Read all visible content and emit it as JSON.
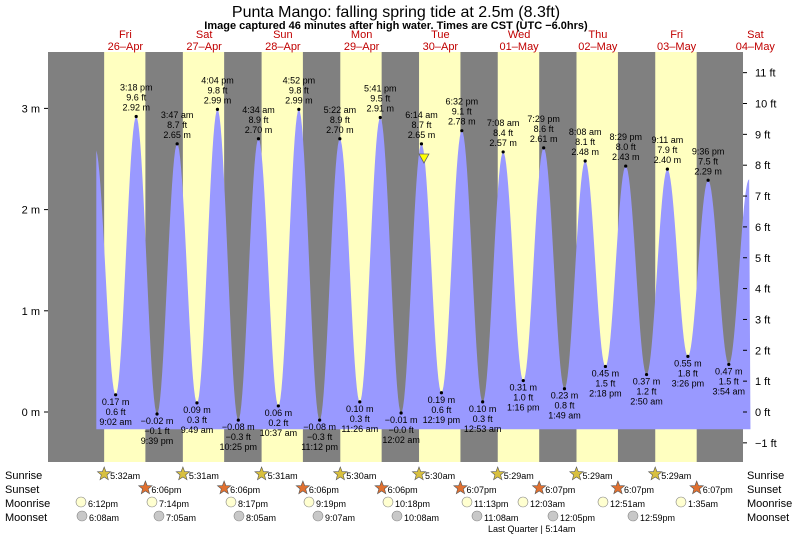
{
  "title": "Punta Mango: falling  spring tide at 2.5m (8.3ft)",
  "subtitle": "Image captured 46 minutes after high water. Times are CST (UTC −6.0hrs)",
  "colors": {
    "day": "#ffffc0",
    "night": "#808080",
    "tide": "#9999ff",
    "dayname": "#c00000"
  },
  "days": [
    {
      "name": "Fri",
      "date": "26–Apr"
    },
    {
      "name": "Sat",
      "date": "27–Apr"
    },
    {
      "name": "Sun",
      "date": "28–Apr"
    },
    {
      "name": "Mon",
      "date": "29–Apr"
    },
    {
      "name": "Tue",
      "date": "30–Apr"
    },
    {
      "name": "Wed",
      "date": "01–May"
    },
    {
      "name": "Thu",
      "date": "02–May"
    },
    {
      "name": "Fri",
      "date": "03–May"
    },
    {
      "name": "Sat",
      "date": "04–May"
    }
  ],
  "row_labels": {
    "sunrise": "Sunrise",
    "sunset": "Sunset",
    "moonrise": "Moonrise",
    "moonset": "Moonset"
  },
  "sunrise": [
    "5:32am",
    "5:31am",
    "5:31am",
    "5:30am",
    "5:30am",
    "5:29am",
    "5:29am",
    "5:29am"
  ],
  "sunset": [
    "6:06pm",
    "6:06pm",
    "6:06pm",
    "6:06pm",
    "6:07pm",
    "6:07pm",
    "6:07pm",
    "6:07pm"
  ],
  "moonrise": [
    "6:12pm",
    "7:14pm",
    "8:17pm",
    "9:19pm",
    "10:18pm",
    "11:13pm",
    "12:03am",
    "12:51am",
    "1:35am"
  ],
  "moonset": [
    "6:08am",
    "7:05am",
    "8:05am",
    "9:07am",
    "10:08am",
    "11:08am",
    "12:05pm",
    "12:59pm"
  ],
  "moon_phase": "Last Quarter | 5:14am",
  "chart_data": {
    "type": "area",
    "title": "Punta Mango: falling  spring tide at 2.5m (8.3ft)",
    "xlabel": "",
    "ylabel": "",
    "x_range": [
      "26-Apr 00:00",
      "04-May 24:00"
    ],
    "ylim_m": [
      -0.35,
      3.4
    ],
    "ylim_ft": [
      -1.1,
      11.1
    ],
    "left_ticks": [
      "0 m",
      "1 m",
      "2 m",
      "3 m"
    ],
    "right_ticks": [
      "−1 ft",
      "0 ft",
      "1 ft",
      "2 ft",
      "3 ft",
      "4 ft",
      "5 ft",
      "6 ft",
      "7 ft",
      "8 ft",
      "9 ft",
      "10 ft",
      "11 ft"
    ],
    "extremes": [
      {
        "day": 0,
        "time": "9:02 am",
        "m": "0.17 m",
        "ft": "0.6 ft",
        "type": "low",
        "h": 0.17
      },
      {
        "day": 0,
        "time": "3:18 pm",
        "m": "2.92 m",
        "ft": "9.6 ft",
        "type": "high",
        "h": 2.92
      },
      {
        "day": 0,
        "time": "9:39 pm",
        "m": "−0.02 m",
        "ft": "−0.1 ft",
        "type": "low",
        "h": -0.02
      },
      {
        "day": 1,
        "time": "3:47 am",
        "m": "2.65 m",
        "ft": "8.7 ft",
        "type": "high",
        "h": 2.65
      },
      {
        "day": 1,
        "time": "9:49 am",
        "m": "0.09 m",
        "ft": "0.3 ft",
        "type": "low",
        "h": 0.09
      },
      {
        "day": 1,
        "time": "4:04 pm",
        "m": "2.99 m",
        "ft": "9.8 ft",
        "type": "high",
        "h": 2.99
      },
      {
        "day": 1,
        "time": "10:25 pm",
        "m": "−0.08 m",
        "ft": "−0.3 ft",
        "type": "low",
        "h": -0.08
      },
      {
        "day": 2,
        "time": "4:34 am",
        "m": "2.70 m",
        "ft": "8.9 ft",
        "type": "high",
        "h": 2.7
      },
      {
        "day": 2,
        "time": "10:37 am",
        "m": "0.06 m",
        "ft": "0.2 ft",
        "type": "low",
        "h": 0.06
      },
      {
        "day": 2,
        "time": "4:52 pm",
        "m": "2.99 m",
        "ft": "9.8 ft",
        "type": "high",
        "h": 2.99
      },
      {
        "day": 2,
        "time": "11:12 pm",
        "m": "−0.08 m",
        "ft": "−0.3 ft",
        "type": "low",
        "h": -0.08
      },
      {
        "day": 3,
        "time": "5:22 am",
        "m": "2.70 m",
        "ft": "8.9 ft",
        "type": "high",
        "h": 2.7
      },
      {
        "day": 3,
        "time": "11:26 am",
        "m": "0.10 m",
        "ft": "0.3 ft",
        "type": "low",
        "h": 0.1
      },
      {
        "day": 3,
        "time": "5:41 pm",
        "m": "2.91 m",
        "ft": "9.5 ft",
        "type": "high",
        "h": 2.91
      },
      {
        "day": 4,
        "time": "12:02 am",
        "m": "−0.01 m",
        "ft": "−0.0 ft",
        "type": "low",
        "h": -0.01
      },
      {
        "day": 4,
        "time": "6:14 am",
        "m": "2.65 m",
        "ft": "8.7 ft",
        "type": "high",
        "h": 2.65
      },
      {
        "day": 4,
        "time": "12:19 pm",
        "m": "0.19 m",
        "ft": "0.6 ft",
        "type": "low",
        "h": 0.19
      },
      {
        "day": 4,
        "time": "6:32 pm",
        "m": "2.78 m",
        "ft": "9.1 ft",
        "type": "high",
        "h": 2.78
      },
      {
        "day": 5,
        "time": "12:53 am",
        "m": "0.10 m",
        "ft": "0.3 ft",
        "type": "low",
        "h": 0.1
      },
      {
        "day": 5,
        "time": "7:08 am",
        "m": "2.57 m",
        "ft": "8.4 ft",
        "type": "high",
        "h": 2.57
      },
      {
        "day": 5,
        "time": "1:16 pm",
        "m": "0.31 m",
        "ft": "1.0 ft",
        "type": "low",
        "h": 0.31
      },
      {
        "day": 5,
        "time": "7:29 pm",
        "m": "2.61 m",
        "ft": "8.6 ft",
        "type": "high",
        "h": 2.61
      },
      {
        "day": 6,
        "time": "1:49 am",
        "m": "0.23 m",
        "ft": "0.8 ft",
        "type": "low",
        "h": 0.23
      },
      {
        "day": 6,
        "time": "8:08 am",
        "m": "2.48 m",
        "ft": "8.1 ft",
        "type": "high",
        "h": 2.48
      },
      {
        "day": 6,
        "time": "2:18 pm",
        "m": "0.45 m",
        "ft": "1.5 ft",
        "type": "low",
        "h": 0.45
      },
      {
        "day": 6,
        "time": "8:29 pm",
        "m": "2.43 m",
        "ft": "8.0 ft",
        "type": "high",
        "h": 2.43
      },
      {
        "day": 7,
        "time": "2:50 am",
        "m": "0.37 m",
        "ft": "1.2 ft",
        "type": "low",
        "h": 0.37
      },
      {
        "day": 7,
        "time": "9:11 am",
        "m": "2.40 m",
        "ft": "7.9 ft",
        "type": "high",
        "h": 2.4
      },
      {
        "day": 7,
        "time": "3:26 pm",
        "m": "0.55 m",
        "ft": "1.8 ft",
        "type": "low",
        "h": 0.55
      },
      {
        "day": 7,
        "time": "9:36 pm",
        "m": "2.29 m",
        "ft": "7.5 ft",
        "type": "high",
        "h": 2.29
      },
      {
        "day": 8,
        "time": "3:54 am",
        "m": "0.47 m",
        "ft": "1.5 ft",
        "type": "low",
        "h": 0.47
      }
    ]
  }
}
